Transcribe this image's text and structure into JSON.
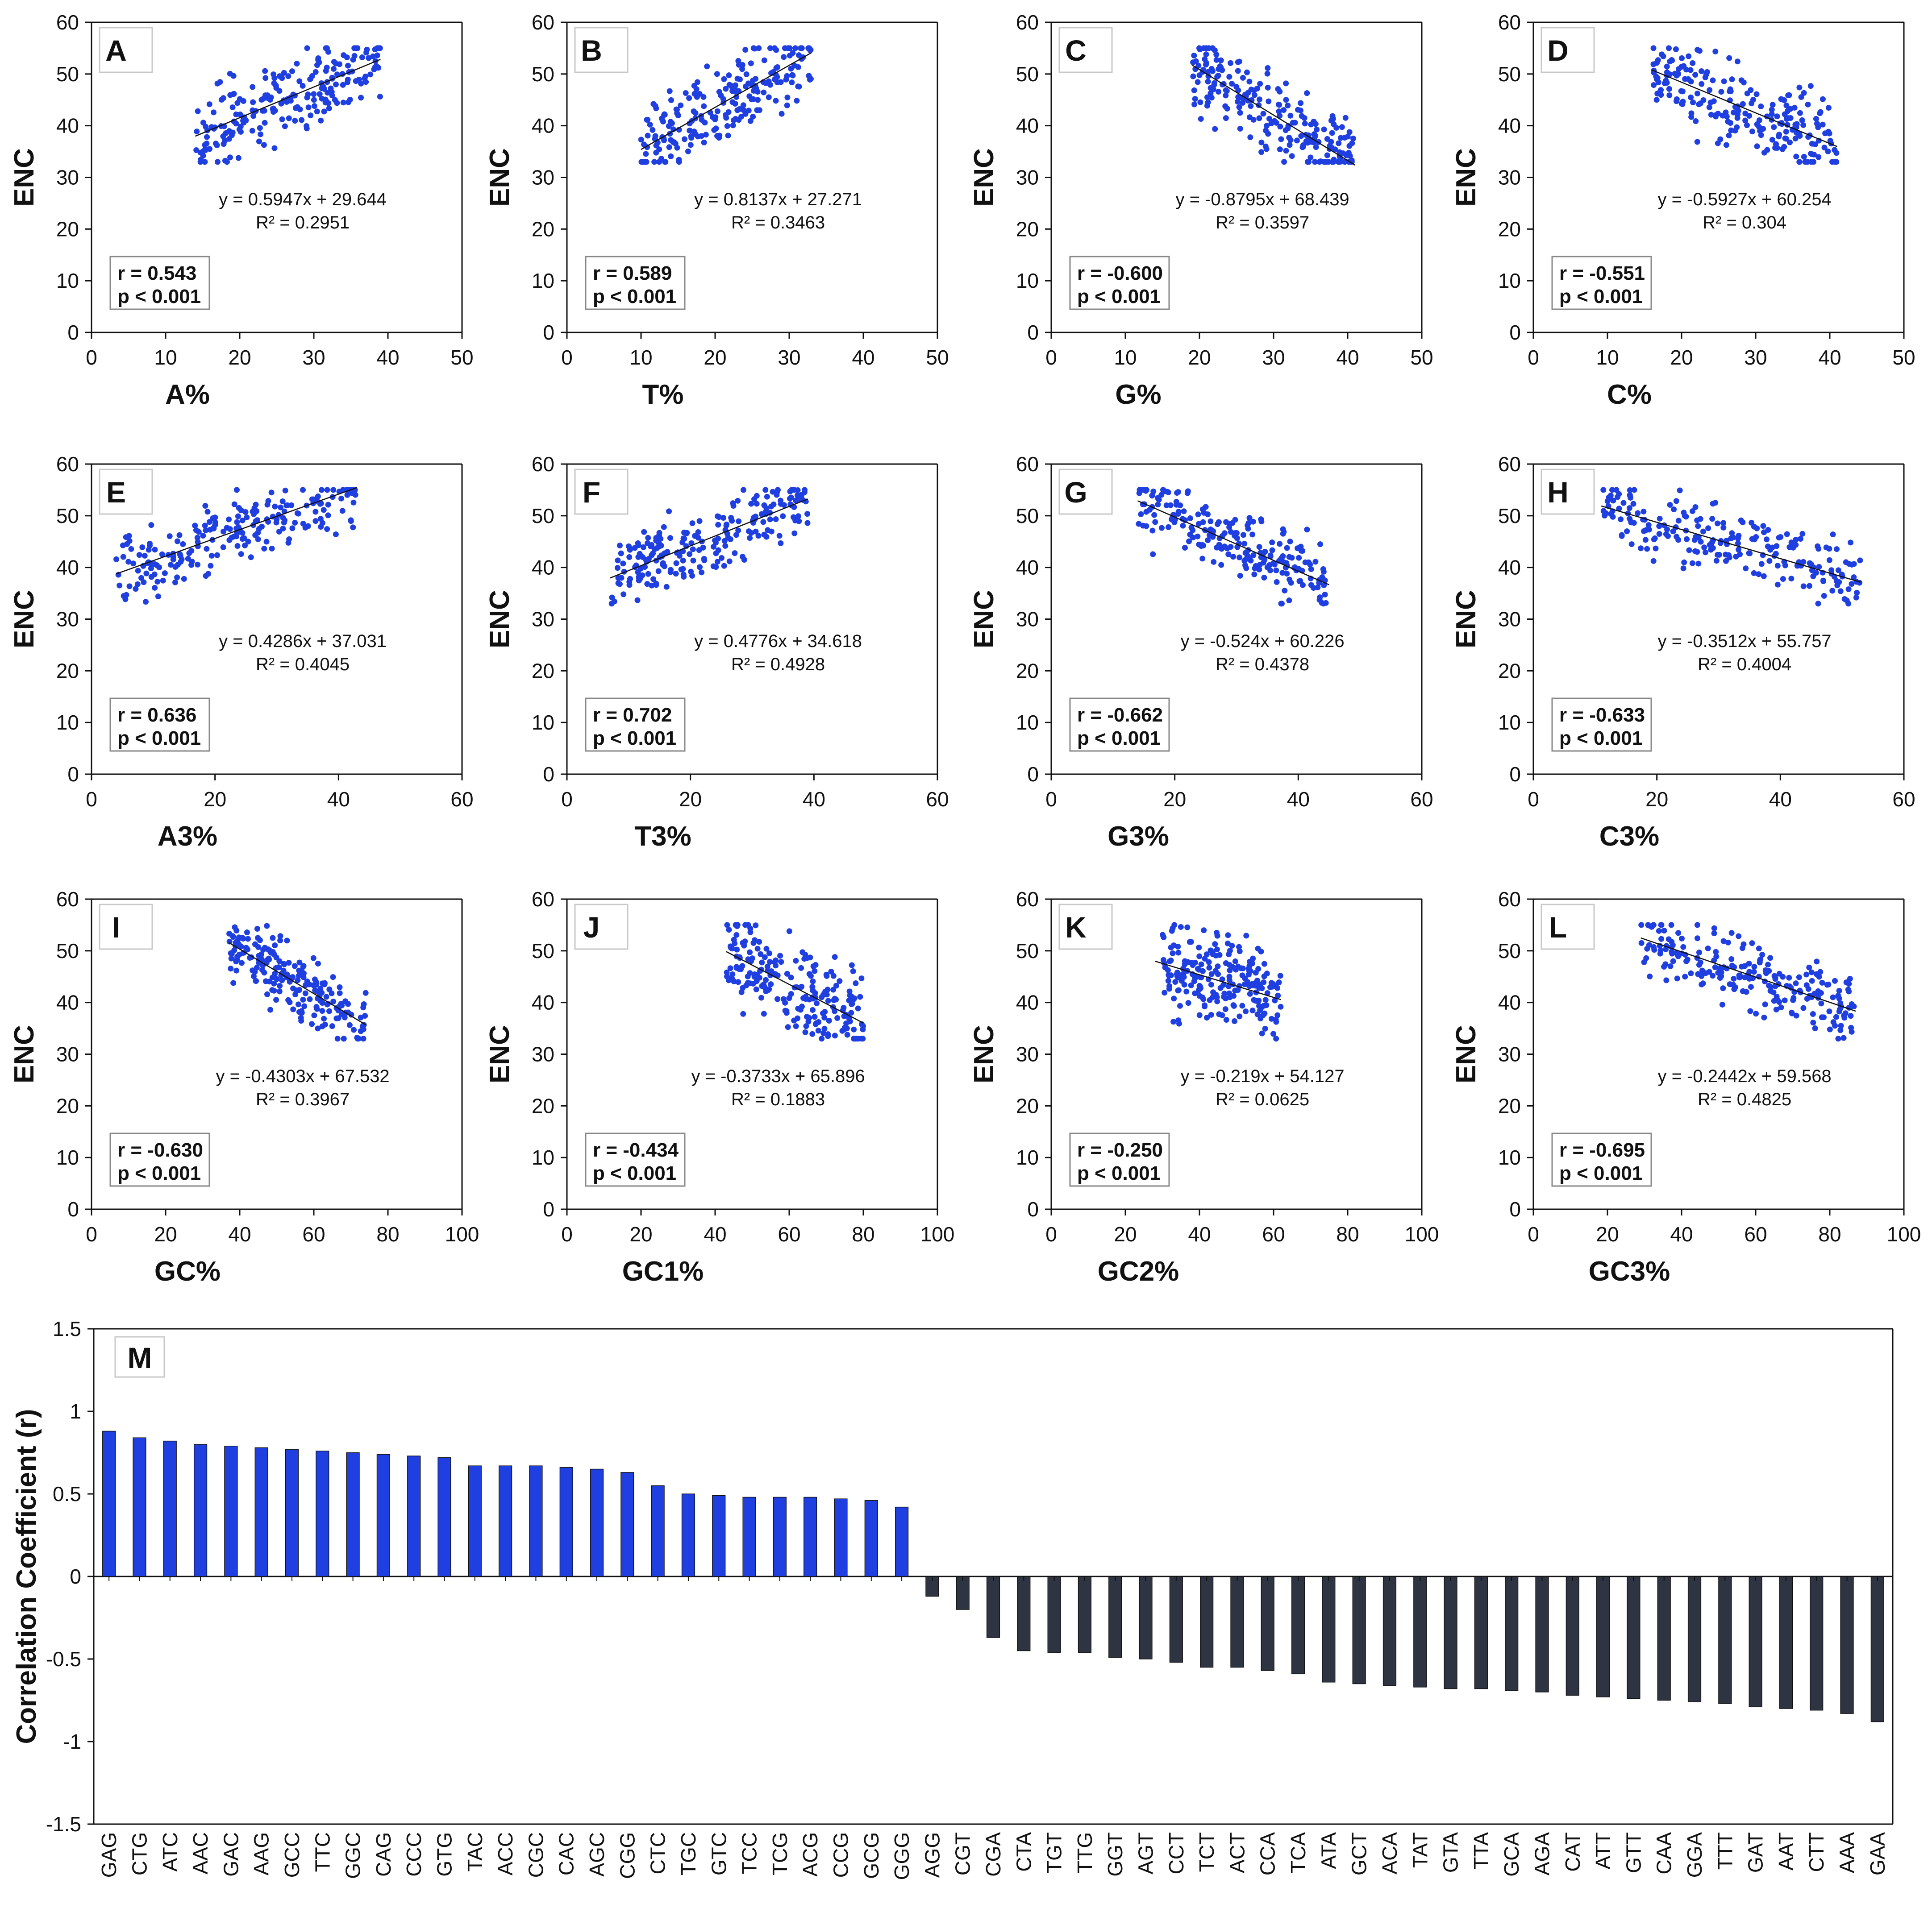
{
  "colors": {
    "points": "#1f3fe0",
    "positive_bar": "#1f3fe0",
    "negative_bar": "#2e3442",
    "axis": "#111111"
  },
  "chart_data": [
    {
      "id": "A",
      "type": "scatter",
      "xlabel": "A%",
      "ylabel": "ENC",
      "xlim": [
        0,
        50
      ],
      "ylim": [
        0,
        60
      ],
      "xticks": [
        0,
        10,
        20,
        30,
        40,
        50
      ],
      "yticks": [
        0,
        10,
        20,
        30,
        40,
        50,
        60
      ],
      "slope": 0.5947,
      "intercept": 29.644,
      "fit_range": [
        14,
        39
      ],
      "equation": "y = 0.5947x + 29.644",
      "r2_label": "R² = 0.2951",
      "r_label": "r = 0.543",
      "p_label": "p < 0.001",
      "point_cloud": {
        "x_range": [
          14,
          39
        ],
        "enc_range": [
          33,
          55
        ],
        "n": 220,
        "spread": 6
      }
    },
    {
      "id": "B",
      "type": "scatter",
      "xlabel": "T%",
      "ylabel": "ENC",
      "xlim": [
        0,
        50
      ],
      "ylim": [
        0,
        60
      ],
      "xticks": [
        0,
        10,
        20,
        30,
        40,
        50
      ],
      "yticks": [
        0,
        10,
        20,
        30,
        40,
        50,
        60
      ],
      "slope": 0.8137,
      "intercept": 27.271,
      "fit_range": [
        10,
        33
      ],
      "equation": "y = 0.8137x + 27.271",
      "r2_label": "R² = 0.3463",
      "r_label": "r = 0.589",
      "p_label": "p < 0.001",
      "point_cloud": {
        "x_range": [
          10,
          33
        ],
        "enc_range": [
          33,
          55
        ],
        "n": 220,
        "spread": 6
      }
    },
    {
      "id": "C",
      "type": "scatter",
      "xlabel": "G%",
      "ylabel": "ENC",
      "xlim": [
        0,
        50
      ],
      "ylim": [
        0,
        60
      ],
      "xticks": [
        0,
        10,
        20,
        30,
        40,
        50
      ],
      "yticks": [
        0,
        10,
        20,
        30,
        40,
        50,
        60
      ],
      "slope": -0.8795,
      "intercept": 68.439,
      "fit_range": [
        19,
        41
      ],
      "equation": "y = -0.8795x + 68.439",
      "r2_label": "R² = 0.3597",
      "r_label": "r = -0.600",
      "p_label": "p < 0.001",
      "point_cloud": {
        "x_range": [
          19,
          41
        ],
        "enc_range": [
          33,
          55
        ],
        "n": 220,
        "spread": 6
      }
    },
    {
      "id": "D",
      "type": "scatter",
      "xlabel": "C%",
      "ylabel": "ENC",
      "xlim": [
        0,
        50
      ],
      "ylim": [
        0,
        60
      ],
      "xticks": [
        0,
        10,
        20,
        30,
        40,
        50
      ],
      "yticks": [
        0,
        10,
        20,
        30,
        40,
        50,
        60
      ],
      "slope": -0.5927,
      "intercept": 60.254,
      "fit_range": [
        16,
        41
      ],
      "equation": "y = -0.5927x + 60.254",
      "r2_label": "R² = 0.304",
      "r_label": "r = -0.551",
      "p_label": "p < 0.001",
      "point_cloud": {
        "x_range": [
          16,
          41
        ],
        "enc_range": [
          33,
          55
        ],
        "n": 220,
        "spread": 6
      }
    },
    {
      "id": "E",
      "type": "scatter",
      "xlabel": "A3%",
      "ylabel": "ENC",
      "xlim": [
        0,
        60
      ],
      "ylim": [
        0,
        60
      ],
      "xticks": [
        0,
        20,
        40,
        60
      ],
      "yticks": [
        0,
        10,
        20,
        30,
        40,
        50,
        60
      ],
      "slope": 0.4286,
      "intercept": 37.031,
      "fit_range": [
        4,
        43
      ],
      "equation": "y = 0.4286x + 37.031",
      "r2_label": "R² = 0.4045",
      "r_label": "r = 0.636",
      "p_label": "p < 0.001",
      "point_cloud": {
        "x_range": [
          4,
          43
        ],
        "enc_range": [
          33,
          55
        ],
        "n": 220,
        "spread": 5
      }
    },
    {
      "id": "F",
      "type": "scatter",
      "xlabel": "T3%",
      "ylabel": "ENC",
      "xlim": [
        0,
        60
      ],
      "ylim": [
        0,
        60
      ],
      "xticks": [
        0,
        20,
        40,
        60
      ],
      "yticks": [
        0,
        10,
        20,
        30,
        40,
        50,
        60
      ],
      "slope": 0.4776,
      "intercept": 34.618,
      "fit_range": [
        7,
        39
      ],
      "equation": "y = 0.4776x + 34.618",
      "r2_label": "R² = 0.4928",
      "r_label": "r = 0.702",
      "p_label": "p < 0.001",
      "point_cloud": {
        "x_range": [
          7,
          39
        ],
        "enc_range": [
          33,
          55
        ],
        "n": 220,
        "spread": 5
      }
    },
    {
      "id": "G",
      "type": "scatter",
      "xlabel": "G3%",
      "ylabel": "ENC",
      "xlim": [
        0,
        60
      ],
      "ylim": [
        0,
        60
      ],
      "xticks": [
        0,
        20,
        40,
        60
      ],
      "yticks": [
        0,
        10,
        20,
        30,
        40,
        50,
        60
      ],
      "slope": -0.524,
      "intercept": 60.226,
      "fit_range": [
        14,
        45
      ],
      "equation": "y = -0.524x + 60.226",
      "r2_label": "R² = 0.4378",
      "r_label": "r = -0.662",
      "p_label": "p < 0.001",
      "point_cloud": {
        "x_range": [
          14,
          45
        ],
        "enc_range": [
          33,
          55
        ],
        "n": 220,
        "spread": 5
      }
    },
    {
      "id": "H",
      "type": "scatter",
      "xlabel": "C3%",
      "ylabel": "ENC",
      "xlim": [
        0,
        60
      ],
      "ylim": [
        0,
        60
      ],
      "xticks": [
        0,
        20,
        40,
        60
      ],
      "yticks": [
        0,
        10,
        20,
        30,
        40,
        50,
        60
      ],
      "slope": -0.3512,
      "intercept": 55.757,
      "fit_range": [
        11,
        53
      ],
      "equation": "y = -0.3512x + 55.757",
      "r2_label": "R² = 0.4004",
      "r_label": "r = -0.633",
      "p_label": "p < 0.001",
      "point_cloud": {
        "x_range": [
          11,
          53
        ],
        "enc_range": [
          33,
          55
        ],
        "n": 220,
        "spread": 5
      }
    },
    {
      "id": "I",
      "type": "scatter",
      "xlabel": "GC%",
      "ylabel": "ENC",
      "xlim": [
        0,
        100
      ],
      "ylim": [
        0,
        60
      ],
      "xticks": [
        0,
        20,
        40,
        60,
        80,
        100
      ],
      "yticks": [
        0,
        10,
        20,
        30,
        40,
        50,
        60
      ],
      "slope": -0.4303,
      "intercept": 67.532,
      "fit_range": [
        37,
        74
      ],
      "equation": "y = -0.4303x + 67.532",
      "r2_label": "R² = 0.3967",
      "r_label": "r = -0.630",
      "p_label": "p < 0.001",
      "point_cloud": {
        "x_range": [
          37,
          74
        ],
        "enc_range": [
          33,
          55
        ],
        "n": 220,
        "spread": 5
      }
    },
    {
      "id": "J",
      "type": "scatter",
      "xlabel": "GC1%",
      "ylabel": "ENC",
      "xlim": [
        0,
        100
      ],
      "ylim": [
        0,
        60
      ],
      "xticks": [
        0,
        20,
        40,
        60,
        80,
        100
      ],
      "yticks": [
        0,
        10,
        20,
        30,
        40,
        50,
        60
      ],
      "slope": -0.3733,
      "intercept": 65.896,
      "fit_range": [
        43,
        80
      ],
      "equation": "y = -0.3733x + 65.896",
      "r2_label": "R² = 0.1883",
      "r_label": "r = -0.434",
      "p_label": "p < 0.001",
      "point_cloud": {
        "x_range": [
          43,
          80
        ],
        "enc_range": [
          33,
          55
        ],
        "n": 220,
        "spread": 7
      }
    },
    {
      "id": "K",
      "type": "scatter",
      "xlabel": "GC2%",
      "ylabel": "ENC",
      "xlim": [
        0,
        100
      ],
      "ylim": [
        0,
        60
      ],
      "xticks": [
        0,
        20,
        40,
        60,
        80,
        100
      ],
      "yticks": [
        0,
        10,
        20,
        30,
        40,
        50,
        60
      ],
      "slope": -0.219,
      "intercept": 54.127,
      "fit_range": [
        28,
        62
      ],
      "equation": "y = -0.219x + 54.127",
      "r2_label": "R² = 0.0625",
      "r_label": "r = -0.250",
      "p_label": "p < 0.001",
      "point_cloud": {
        "x_range": [
          30,
          62
        ],
        "enc_range": [
          33,
          55
        ],
        "n": 220,
        "spread": 7
      }
    },
    {
      "id": "L",
      "type": "scatter",
      "xlabel": "GC3%",
      "ylabel": "ENC",
      "xlim": [
        0,
        100
      ],
      "ylim": [
        0,
        60
      ],
      "xticks": [
        0,
        20,
        40,
        60,
        80,
        100
      ],
      "yticks": [
        0,
        10,
        20,
        30,
        40,
        50,
        60
      ],
      "slope": -0.2442,
      "intercept": 59.568,
      "fit_range": [
        29,
        87
      ],
      "equation": "y = -0.2442x + 59.568",
      "r2_label": "R² = 0.4825",
      "r_label": "r = -0.695",
      "p_label": "p < 0.001",
      "point_cloud": {
        "x_range": [
          29,
          87
        ],
        "enc_range": [
          33,
          55
        ],
        "n": 220,
        "spread": 5
      }
    },
    {
      "id": "M",
      "type": "bar",
      "ylabel": "Correlation Coefficient (r)",
      "ylim": [
        -1.5,
        1.5
      ],
      "yticks": [
        -1.5,
        -1,
        -0.5,
        0,
        0.5,
        1,
        1.5
      ],
      "categories": [
        "GAG",
        "CTG",
        "ATC",
        "AAC",
        "GAC",
        "AAG",
        "GCC",
        "TTC",
        "GGC",
        "CAG",
        "CCC",
        "GTG",
        "TAC",
        "ACC",
        "CGC",
        "CAC",
        "AGC",
        "CGG",
        "CTC",
        "TGC",
        "GTC",
        "TCC",
        "TCG",
        "ACG",
        "CCG",
        "GCG",
        "GGG",
        "AGG",
        "CGT",
        "CGA",
        "CTA",
        "TGT",
        "TTG",
        "GGT",
        "AGT",
        "CCT",
        "TCT",
        "ACT",
        "CCA",
        "TCA",
        "ATA",
        "GCT",
        "ACA",
        "TAT",
        "GTA",
        "TTA",
        "GCA",
        "AGA",
        "CAT",
        "ATT",
        "GTT",
        "CAA",
        "GGA",
        "TTT",
        "GAT",
        "AAT",
        "CTT",
        "AAA",
        "GAA"
      ],
      "values": [
        0.88,
        0.84,
        0.82,
        0.8,
        0.79,
        0.78,
        0.77,
        0.76,
        0.75,
        0.74,
        0.73,
        0.72,
        0.67,
        0.67,
        0.67,
        0.66,
        0.65,
        0.63,
        0.55,
        0.5,
        0.49,
        0.48,
        0.48,
        0.48,
        0.47,
        0.46,
        0.42,
        -0.12,
        -0.2,
        -0.37,
        -0.45,
        -0.46,
        -0.46,
        -0.49,
        -0.5,
        -0.52,
        -0.55,
        -0.55,
        -0.57,
        -0.59,
        -0.64,
        -0.65,
        -0.66,
        -0.67,
        -0.68,
        -0.68,
        -0.69,
        -0.7,
        -0.72,
        -0.73,
        -0.74,
        -0.75,
        -0.76,
        -0.77,
        -0.79,
        -0.8,
        -0.81,
        -0.83,
        -0.88
      ]
    }
  ]
}
